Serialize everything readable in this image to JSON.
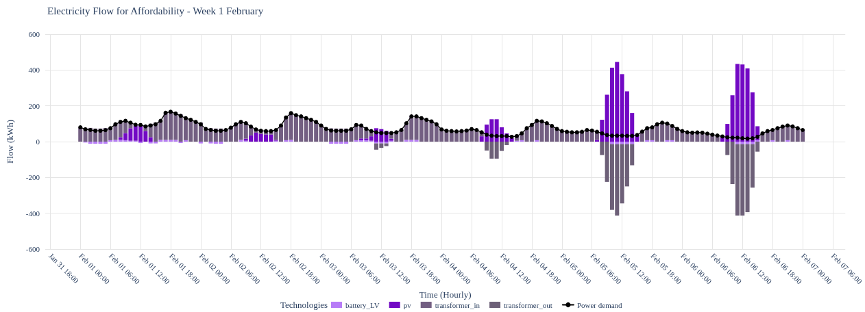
{
  "chart_data": {
    "type": "bar",
    "title": "Electricity Flow for Affordability - Week 1 February",
    "xlabel": "Time (Hourly)",
    "ylabel": "Flow (kWh)",
    "legend_title": "Technologies",
    "stacked": true,
    "grid": true,
    "legend": "bottom",
    "marker": "circle",
    "xlim": [
      "--01-31T17:00",
      "--02-07T08:30"
    ],
    "xticks": [
      {
        "value": "--01-31T18:00",
        "label": "Jan 31 18:00"
      },
      {
        "value": "--02-01T00:00",
        "label": "Feb 01 00:00"
      },
      {
        "value": "--02-01T06:00",
        "label": "Feb 01 06:00"
      },
      {
        "value": "--02-01T12:00",
        "label": "Feb 01 12:00"
      },
      {
        "value": "--02-01T18:00",
        "label": "Feb 01 18:00"
      },
      {
        "value": "--02-02T00:00",
        "label": "Feb 02 00:00"
      },
      {
        "value": "--02-02T06:00",
        "label": "Feb 02 06:00"
      },
      {
        "value": "--02-02T12:00",
        "label": "Feb 02 12:00"
      },
      {
        "value": "--02-02T18:00",
        "label": "Feb 02 18:00"
      },
      {
        "value": "--02-03T00:00",
        "label": "Feb 03 00:00"
      },
      {
        "value": "--02-03T06:00",
        "label": "Feb 03 06:00"
      },
      {
        "value": "--02-03T12:00",
        "label": "Feb 03 12:00"
      },
      {
        "value": "--02-03T18:00",
        "label": "Feb 03 18:00"
      },
      {
        "value": "--02-04T00:00",
        "label": "Feb 04 00:00"
      },
      {
        "value": "--02-04T06:00",
        "label": "Feb 04 06:00"
      },
      {
        "value": "--02-04T12:00",
        "label": "Feb 04 12:00"
      },
      {
        "value": "--02-04T18:00",
        "label": "Feb 04 18:00"
      },
      {
        "value": "--02-05T00:00",
        "label": "Feb 05 00:00"
      },
      {
        "value": "--02-05T06:00",
        "label": "Feb 05 06:00"
      },
      {
        "value": "--02-05T12:00",
        "label": "Feb 05 12:00"
      },
      {
        "value": "--02-05T18:00",
        "label": "Feb 05 18:00"
      },
      {
        "value": "--02-06T00:00",
        "label": "Feb 06 00:00"
      },
      {
        "value": "--02-06T06:00",
        "label": "Feb 06 06:00"
      },
      {
        "value": "--02-06T12:00",
        "label": "Feb 06 12:00"
      },
      {
        "value": "--02-06T18:00",
        "label": "Feb 06 18:00"
      },
      {
        "value": "--02-07T00:00",
        "label": "Feb 07 00:00"
      },
      {
        "value": "--02-07T06:00",
        "label": "Feb 07 06:00"
      }
    ],
    "ylim": [
      -600,
      600
    ],
    "yticks": [
      -600,
      -400,
      -200,
      0,
      200,
      400,
      600
    ],
    "x": [
      "--02-01T00:00",
      "--02-01T01:00",
      "--02-01T02:00",
      "--02-01T03:00",
      "--02-01T04:00",
      "--02-01T05:00",
      "--02-01T06:00",
      "--02-01T07:00",
      "--02-01T08:00",
      "--02-01T09:00",
      "--02-01T10:00",
      "--02-01T11:00",
      "--02-01T12:00",
      "--02-01T13:00",
      "--02-01T14:00",
      "--02-01T15:00",
      "--02-01T16:00",
      "--02-01T17:00",
      "--02-01T18:00",
      "--02-01T19:00",
      "--02-01T20:00",
      "--02-01T21:00",
      "--02-01T22:00",
      "--02-01T23:00",
      "--02-02T00:00",
      "--02-02T01:00",
      "--02-02T02:00",
      "--02-02T03:00",
      "--02-02T04:00",
      "--02-02T05:00",
      "--02-02T06:00",
      "--02-02T07:00",
      "--02-02T08:00",
      "--02-02T09:00",
      "--02-02T10:00",
      "--02-02T11:00",
      "--02-02T12:00",
      "--02-02T13:00",
      "--02-02T14:00",
      "--02-02T15:00",
      "--02-02T16:00",
      "--02-02T17:00",
      "--02-02T18:00",
      "--02-02T19:00",
      "--02-02T20:00",
      "--02-02T21:00",
      "--02-02T22:00",
      "--02-02T23:00",
      "--02-03T00:00",
      "--02-03T01:00",
      "--02-03T02:00",
      "--02-03T03:00",
      "--02-03T04:00",
      "--02-03T05:00",
      "--02-03T06:00",
      "--02-03T07:00",
      "--02-03T08:00",
      "--02-03T09:00",
      "--02-03T10:00",
      "--02-03T11:00",
      "--02-03T12:00",
      "--02-03T13:00",
      "--02-03T14:00",
      "--02-03T15:00",
      "--02-03T16:00",
      "--02-03T17:00",
      "--02-03T18:00",
      "--02-03T19:00",
      "--02-03T20:00",
      "--02-03T21:00",
      "--02-03T22:00",
      "--02-03T23:00",
      "--02-04T00:00",
      "--02-04T01:00",
      "--02-04T02:00",
      "--02-04T03:00",
      "--02-04T04:00",
      "--02-04T05:00",
      "--02-04T06:00",
      "--02-04T07:00",
      "--02-04T08:00",
      "--02-04T09:00",
      "--02-04T10:00",
      "--02-04T11:00",
      "--02-04T12:00",
      "--02-04T13:00",
      "--02-04T14:00",
      "--02-04T15:00",
      "--02-04T16:00",
      "--02-04T17:00",
      "--02-04T18:00",
      "--02-04T19:00",
      "--02-04T20:00",
      "--02-04T21:00",
      "--02-04T22:00",
      "--02-04T23:00",
      "--02-05T00:00",
      "--02-05T01:00",
      "--02-05T02:00",
      "--02-05T03:00",
      "--02-05T04:00",
      "--02-05T05:00",
      "--02-05T06:00",
      "--02-05T07:00",
      "--02-05T08:00",
      "--02-05T09:00",
      "--02-05T10:00",
      "--02-05T11:00",
      "--02-05T12:00",
      "--02-05T13:00",
      "--02-05T14:00",
      "--02-05T15:00",
      "--02-05T16:00",
      "--02-05T17:00",
      "--02-05T18:00",
      "--02-05T19:00",
      "--02-05T20:00",
      "--02-05T21:00",
      "--02-05T22:00",
      "--02-05T23:00",
      "--02-06T00:00",
      "--02-06T01:00",
      "--02-06T02:00",
      "--02-06T03:00",
      "--02-06T04:00",
      "--02-06T05:00",
      "--02-06T06:00",
      "--02-06T07:00",
      "--02-06T08:00",
      "--02-06T09:00",
      "--02-06T10:00",
      "--02-06T11:00",
      "--02-06T12:00",
      "--02-06T13:00",
      "--02-06T14:00",
      "--02-06T15:00",
      "--02-06T16:00",
      "--02-06T17:00",
      "--02-06T18:00",
      "--02-06T19:00",
      "--02-06T20:00",
      "--02-06T21:00",
      "--02-06T22:00",
      "--02-06T23:00",
      "--02-07T00:00"
    ],
    "series": [
      {
        "name": "battery_LV",
        "color": "#b77cf7",
        "values": [
          null,
          -5,
          -12,
          -12,
          -12,
          -12,
          8,
          10,
          10,
          8,
          5,
          5,
          -8,
          null,
          -10,
          -10,
          10,
          10,
          10,
          10,
          -8,
          8,
          null,
          null,
          -10,
          null,
          -10,
          -12,
          -12,
          null,
          null,
          null,
          10,
          5,
          null,
          null,
          null,
          null,
          null,
          5,
          null,
          8,
          10,
          null,
          null,
          null,
          null,
          null,
          null,
          null,
          -12,
          -12,
          -12,
          -12,
          null,
          8,
          8,
          8,
          5,
          -10,
          -10,
          -10,
          5,
          null,
          null,
          10,
          10,
          10,
          null,
          null,
          null,
          null,
          null,
          null,
          null,
          null,
          null,
          null,
          null,
          null,
          null,
          null,
          null,
          null,
          null,
          null,
          null,
          5,
          8,
          null,
          null,
          8,
          null,
          null,
          null,
          null,
          null,
          null,
          null,
          null,
          null,
          null,
          null,
          null,
          null,
          null,
          -14,
          -14,
          -14,
          -14,
          -14,
          null,
          null,
          8,
          8,
          null,
          null,
          8,
          8,
          null,
          null,
          null,
          null,
          null,
          null,
          null,
          null,
          null,
          null,
          null,
          null,
          -14,
          -14,
          -14,
          -14,
          8,
          null,
          null,
          8,
          null,
          null,
          8,
          null,
          null,
          null
        ]
      },
      {
        "name": "pv",
        "color": "#7209c4",
        "values": [
          null,
          null,
          null,
          null,
          null,
          null,
          null,
          null,
          15,
          40,
          70,
          85,
          95,
          60,
          25,
          null,
          null,
          null,
          null,
          null,
          null,
          null,
          null,
          null,
          null,
          null,
          null,
          null,
          null,
          null,
          null,
          null,
          null,
          12,
          35,
          50,
          43,
          40,
          40,
          5,
          null,
          null,
          null,
          null,
          null,
          null,
          null,
          null,
          null,
          null,
          null,
          null,
          null,
          null,
          null,
          null,
          10,
          10,
          25,
          75,
          70,
          60,
          12,
          null,
          null,
          null,
          null,
          null,
          null,
          null,
          null,
          null,
          null,
          null,
          null,
          null,
          null,
          null,
          null,
          null,
          30,
          95,
          125,
          125,
          80,
          46,
          20,
          null,
          null,
          null,
          null,
          null,
          null,
          null,
          null,
          null,
          null,
          null,
          null,
          null,
          null,
          null,
          null,
          10,
          122,
          262,
          413,
          445,
          377,
          281,
          160,
          35,
          null,
          null,
          null,
          null,
          null,
          null,
          null,
          null,
          null,
          null,
          null,
          null,
          null,
          null,
          null,
          null,
          29,
          99,
          259,
          434,
          431,
          409,
          275,
          78,
          null,
          null,
          null,
          null,
          null,
          null,
          null,
          null,
          null
        ]
      },
      {
        "name": "transformer_in",
        "color": "#735f82",
        "values": [
          80,
          74,
          77,
          73,
          73,
          76,
          67,
          87,
          85,
          68,
          31,
          null,
          null,
          25,
          75,
          107,
          106,
          151,
          157,
          147,
          152,
          123,
          122,
          110,
          107,
          71,
          75,
          73,
          73,
          65,
          78,
          97,
          100,
          86,
          49,
          18,
          18,
          19,
          19,
          55,
          90,
          127,
          149,
          148,
          141,
          131,
          122,
          110,
          90,
          71,
          74,
          73,
          73,
          73,
          69,
          85,
          72,
          53,
          29,
          null,
          null,
          null,
          31,
          52,
          65,
          93,
          131,
          131,
          131,
          122,
          113,
          97,
          68,
          61,
          59,
          57,
          59,
          62,
          70,
          65,
          22,
          null,
          null,
          null,
          null,
          null,
          null,
          26,
          38,
          75,
          93,
          108,
          113,
          103,
          88,
          71,
          59,
          55,
          52,
          52,
          55,
          65,
          62,
          45,
          null,
          null,
          null,
          null,
          null,
          null,
          null,
          null,
          56,
          67,
          72,
          97,
          106,
          93,
          80,
          71,
          59,
          52,
          50,
          51,
          50,
          45,
          39,
          34,
          null,
          null,
          null,
          null,
          null,
          null,
          null,
          null,
          46,
          59,
          57,
          75,
          84,
          82,
          85,
          75,
          65
        ]
      },
      {
        "name": "transformer_out",
        "color": "#6d6078",
        "values": [
          null,
          null,
          null,
          null,
          null,
          null,
          null,
          null,
          null,
          null,
          null,
          null,
          null,
          null,
          null,
          null,
          null,
          null,
          null,
          null,
          null,
          null,
          null,
          null,
          null,
          null,
          null,
          null,
          null,
          null,
          null,
          null,
          null,
          null,
          null,
          null,
          null,
          null,
          null,
          null,
          null,
          null,
          null,
          null,
          null,
          null,
          null,
          null,
          null,
          null,
          null,
          null,
          null,
          null,
          null,
          null,
          null,
          null,
          null,
          -35,
          -25,
          -15,
          null,
          null,
          null,
          null,
          null,
          null,
          null,
          null,
          null,
          null,
          null,
          null,
          null,
          null,
          null,
          null,
          null,
          null,
          null,
          -50,
          -95,
          -95,
          -52,
          -19,
          null,
          null,
          null,
          null,
          null,
          null,
          null,
          null,
          null,
          null,
          null,
          null,
          null,
          null,
          null,
          null,
          null,
          null,
          -75,
          -225,
          -367,
          -399,
          -331,
          -236,
          -118,
          null,
          null,
          null,
          null,
          null,
          null,
          null,
          null,
          null,
          null,
          null,
          null,
          null,
          null,
          null,
          null,
          null,
          null,
          -75,
          -237,
          -399,
          -399,
          -380,
          -243,
          -56,
          null,
          null,
          null,
          null,
          null,
          null,
          null,
          null,
          null
        ]
      },
      {
        "name": "Power demand",
        "type": "line",
        "color": "#000000",
        "values": [
          80,
          69,
          65,
          61,
          61,
          64,
          75,
          97,
          110,
          116,
          106,
          94,
          93,
          85,
          90,
          97,
          116,
          161,
          167,
          157,
          144,
          131,
          122,
          110,
          97,
          71,
          65,
          61,
          61,
          65,
          78,
          97,
          110,
          103,
          84,
          68,
          61,
          59,
          59,
          65,
          90,
          135,
          159,
          148,
          141,
          131,
          122,
          110,
          90,
          71,
          62,
          61,
          61,
          61,
          69,
          93,
          90,
          71,
          59,
          52,
          48,
          48,
          48,
          52,
          65,
          103,
          141,
          141,
          131,
          122,
          113,
          97,
          68,
          61,
          59,
          57,
          59,
          62,
          70,
          65,
          52,
          39,
          33,
          31,
          31,
          31,
          27,
          31,
          46,
          75,
          93,
          116,
          113,
          103,
          88,
          71,
          59,
          55,
          52,
          52,
          55,
          65,
          62,
          55,
          46,
          37,
          33,
          33,
          33,
          32,
          32,
          37,
          56,
          75,
          80,
          97,
          106,
          101,
          88,
          71,
          59,
          52,
          50,
          51,
          50,
          45,
          39,
          34,
          29,
          24,
          22,
          22,
          19,
          17,
          19,
          27,
          46,
          59,
          65,
          75,
          84,
          90,
          85,
          75,
          65
        ]
      }
    ]
  }
}
